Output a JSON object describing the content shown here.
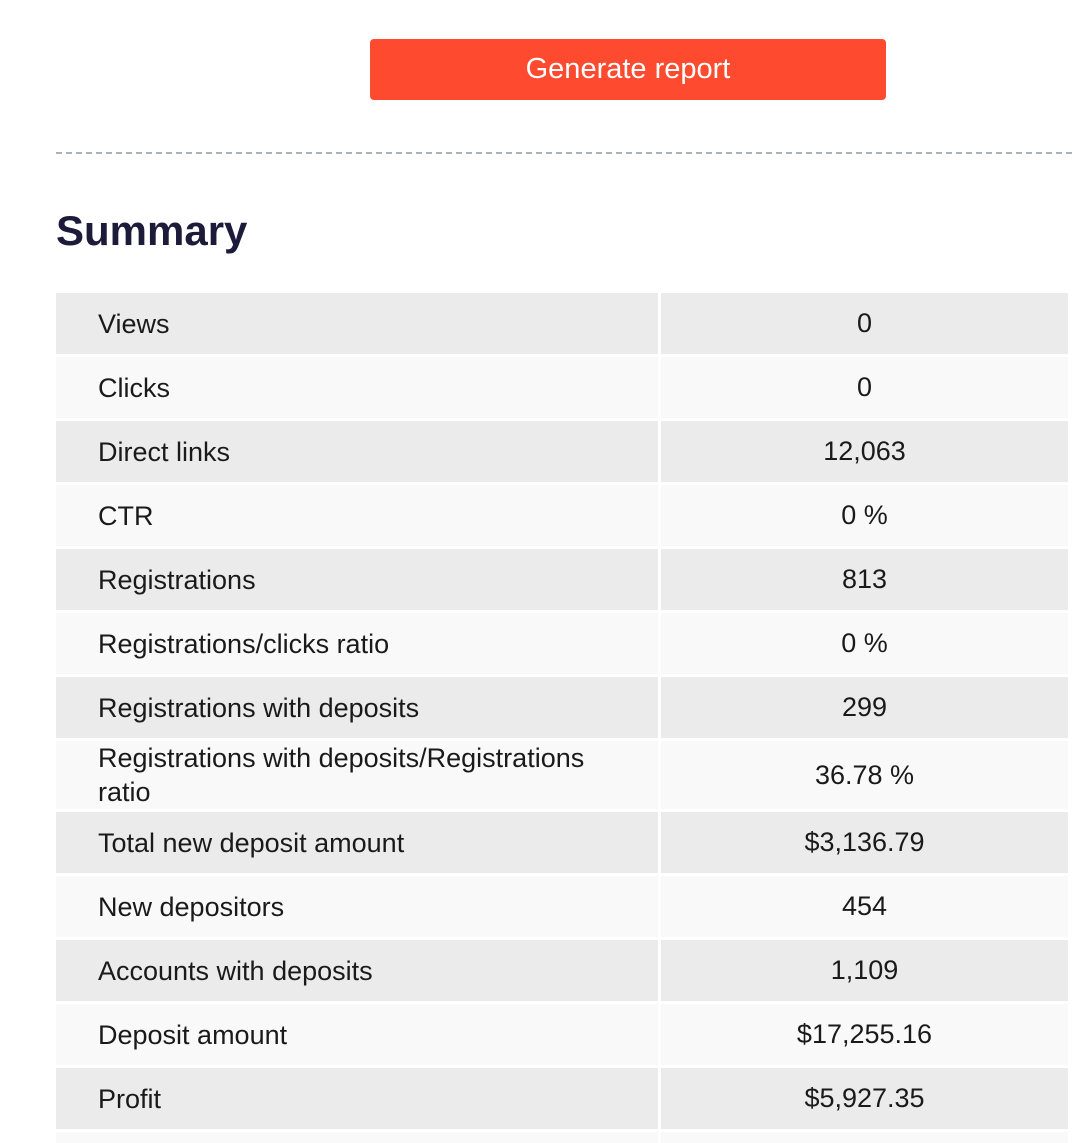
{
  "toolbar": {
    "generate_label": "Generate report",
    "accent_color": "#fe4a2e"
  },
  "summary": {
    "title": "Summary",
    "rows": [
      {
        "label": "Views",
        "value": "0"
      },
      {
        "label": "Clicks",
        "value": "0"
      },
      {
        "label": "Direct links",
        "value": "12,063"
      },
      {
        "label": "CTR",
        "value": "0 %"
      },
      {
        "label": "Registrations",
        "value": "813"
      },
      {
        "label": "Registrations/clicks ratio",
        "value": "0 %"
      },
      {
        "label": "Registrations with deposits",
        "value": "299"
      },
      {
        "label": "Registrations with deposits/Registrations ratio",
        "value": "36.78 %"
      },
      {
        "label": "Total new deposit amount",
        "value": "$3,136.79"
      },
      {
        "label": "New depositors",
        "value": "454"
      },
      {
        "label": "Accounts with deposits",
        "value": "1,109"
      },
      {
        "label": "Deposit amount",
        "value": "$17,255.16"
      },
      {
        "label": "Profit",
        "value": "$5,927.35"
      }
    ]
  }
}
